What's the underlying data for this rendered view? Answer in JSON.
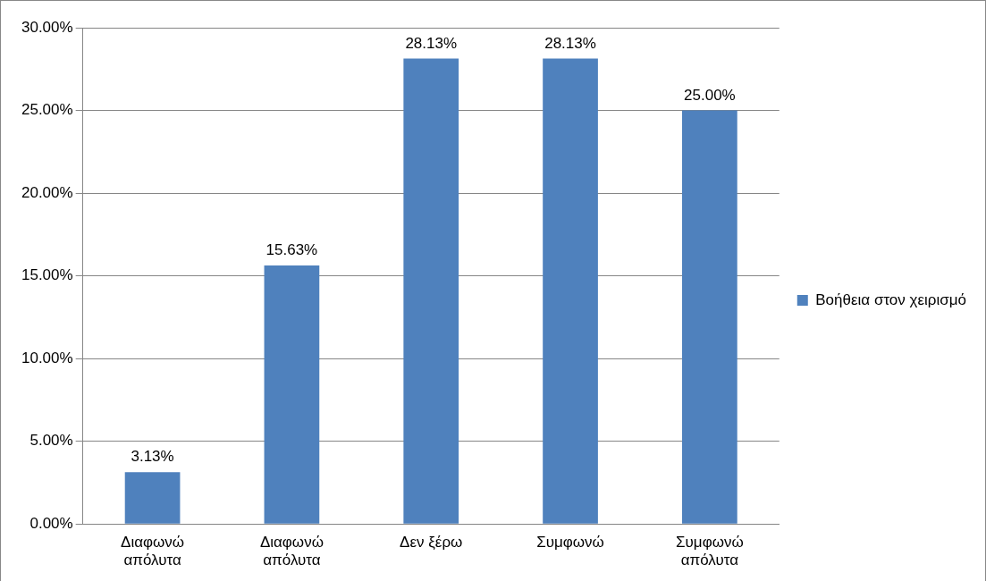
{
  "chart_data": {
    "type": "bar",
    "categories": [
      "Διαφωνώ απόλυτα",
      "Διαφωνώ απόλυτα",
      "Δεν ξέρω",
      "Συμφωνώ",
      "Συμφωνώ απόλυτα"
    ],
    "series": [
      {
        "name": "Βοήθεια στον χειρισμό",
        "color": "#4f81bd",
        "values": [
          3.13,
          15.63,
          28.13,
          28.13,
          25.0
        ],
        "value_labels": [
          "3.13%",
          "15.63%",
          "28.13%",
          "28.13%",
          "25.00%"
        ]
      }
    ],
    "ylim": [
      0,
      30
    ],
    "yticks": [
      {
        "value": 0,
        "label": "0.00%"
      },
      {
        "value": 5,
        "label": "5.00%"
      },
      {
        "value": 10,
        "label": "10.00%"
      },
      {
        "value": 15,
        "label": "15.00%"
      },
      {
        "value": 20,
        "label": "20.00%"
      },
      {
        "value": 25,
        "label": "25.00%"
      },
      {
        "value": 30,
        "label": "30.00%"
      }
    ],
    "grid": "y",
    "legend": "right"
  }
}
